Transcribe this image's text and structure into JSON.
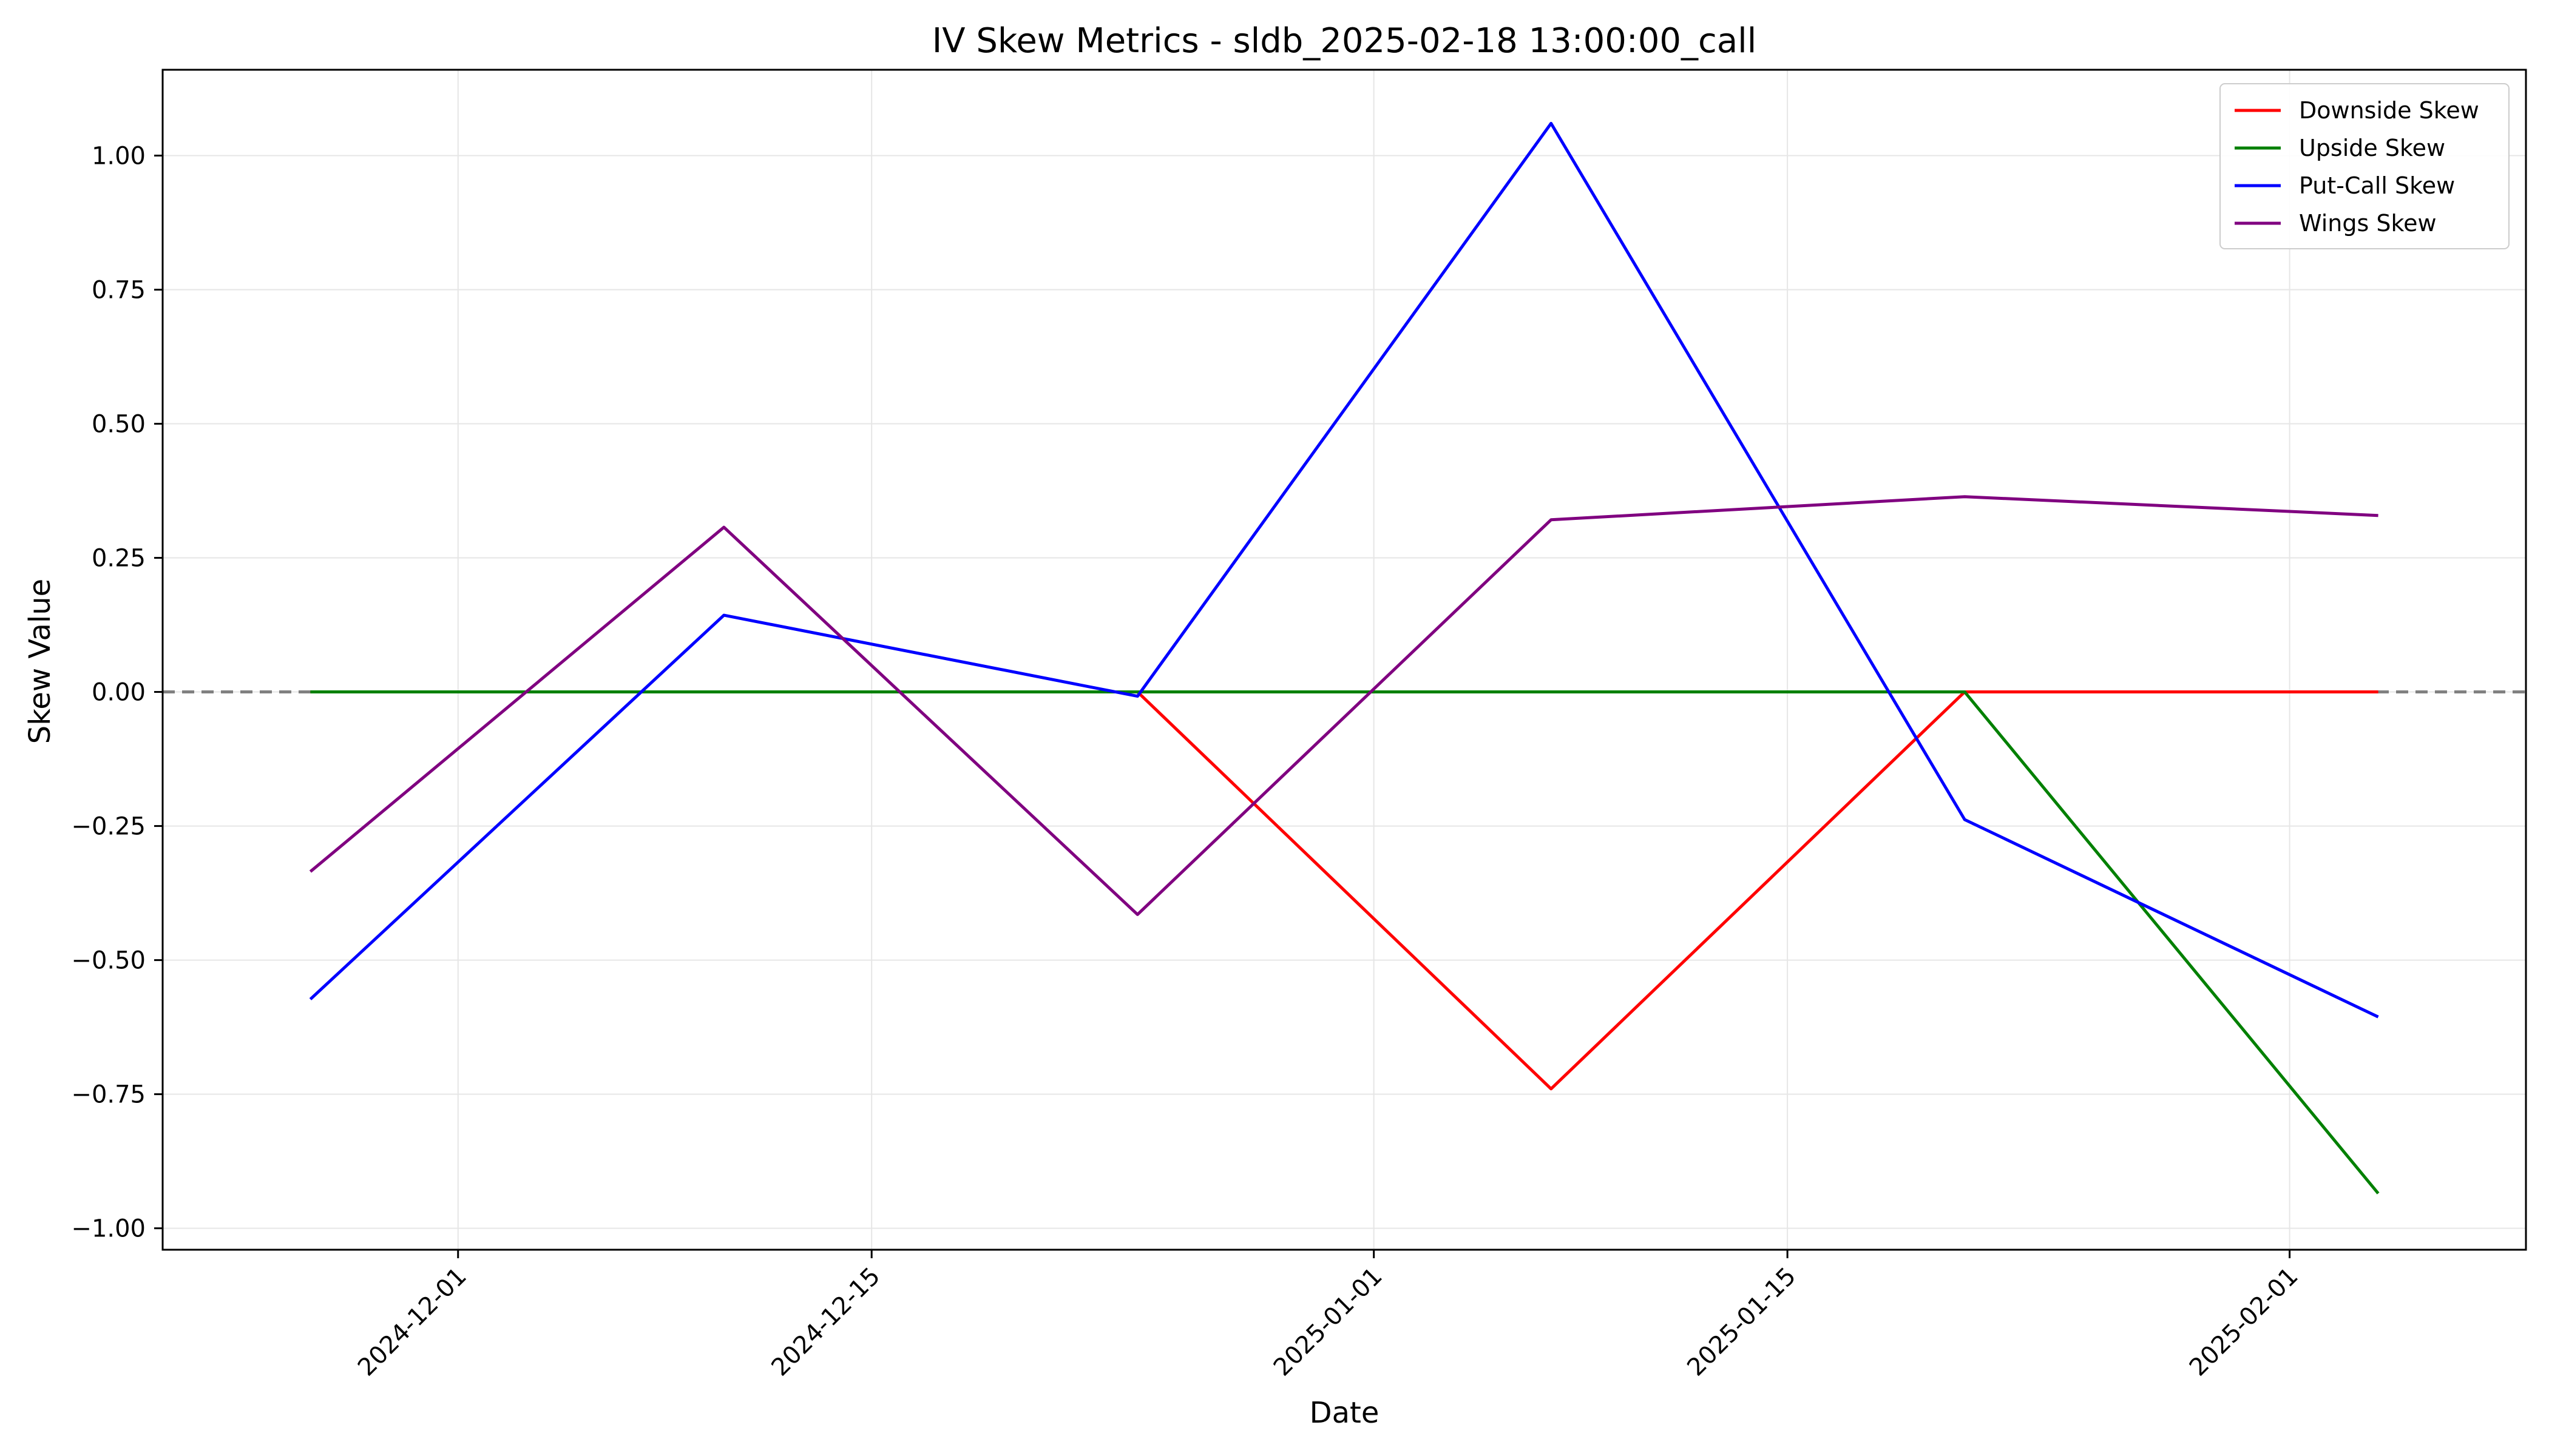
{
  "chart_data": {
    "type": "line",
    "title": "IV Skew Metrics - sldb_2025-02-18 13:00:00_call",
    "xlabel": "Date",
    "ylabel": "Skew Value",
    "x_axis": "date",
    "xlim": [
      "2024-11-21",
      "2025-02-09"
    ],
    "ylim": [
      -1.04,
      1.16
    ],
    "grid": true,
    "legend_position": "top-right",
    "x": [
      "2024-11-26",
      "2024-12-10",
      "2024-12-24",
      "2025-01-07",
      "2025-01-21",
      "2025-02-04"
    ],
    "x_ticks": [
      "2024-12-01",
      "2024-12-15",
      "2025-01-01",
      "2025-01-15",
      "2025-02-01"
    ],
    "y_ticks": [
      {
        "value": 1.0,
        "label": "1.00"
      },
      {
        "value": 0.75,
        "label": "0.75"
      },
      {
        "value": 0.5,
        "label": "0.50"
      },
      {
        "value": 0.25,
        "label": "0.25"
      },
      {
        "value": 0.0,
        "label": "0.00"
      },
      {
        "value": -0.25,
        "label": "−0.25"
      },
      {
        "value": -0.5,
        "label": "−0.50"
      },
      {
        "value": -0.75,
        "label": "−0.75"
      },
      {
        "value": -1.0,
        "label": "−1.00"
      }
    ],
    "reference_line": {
      "y": 0.0,
      "style": "dashed",
      "color": "#808080"
    },
    "series": [
      {
        "name": "Downside Skew",
        "color": "#ff0000",
        "values": [
          0.0,
          0.0,
          0.0,
          -0.74,
          0.0,
          0.0
        ]
      },
      {
        "name": "Upside Skew",
        "color": "#008000",
        "values": [
          0.0,
          0.0,
          0.0,
          0.0,
          0.0,
          -0.935
        ]
      },
      {
        "name": "Put-Call Skew",
        "color": "#0000ff",
        "values": [
          -0.573,
          0.143,
          -0.008,
          1.06,
          -0.238,
          -0.606
        ]
      },
      {
        "name": "Wings Skew",
        "color": "#800080",
        "values": [
          -0.335,
          0.307,
          -0.415,
          0.321,
          0.364,
          0.329
        ]
      }
    ]
  }
}
